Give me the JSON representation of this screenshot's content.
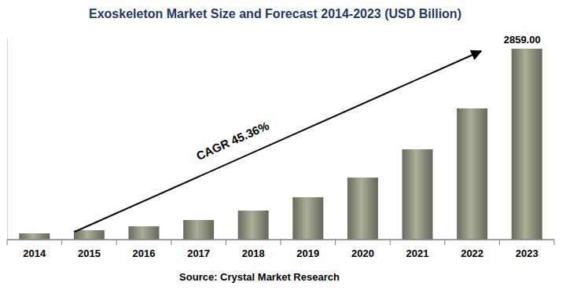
{
  "chart_data": {
    "type": "bar",
    "title": "Exoskeleton Market Size and Forecast 2014-2023 (USD Billion)",
    "categories": [
      "2014",
      "2015",
      "2016",
      "2017",
      "2018",
      "2019",
      "2020",
      "2021",
      "2022",
      "2023"
    ],
    "values": [
      94,
      141,
      200,
      294,
      435,
      635,
      930,
      1353,
      1965,
      2859
    ],
    "value_labels": [
      null,
      null,
      null,
      null,
      null,
      null,
      null,
      null,
      null,
      "2859.00"
    ],
    "data_labels": true,
    "color": "#8c8c7c",
    "ylim": [
      0,
      3000
    ],
    "tick_labels": "x",
    "grid": false,
    "annotation": "CAGR 45.36%",
    "source": "Source: Crystal Market Research"
  }
}
